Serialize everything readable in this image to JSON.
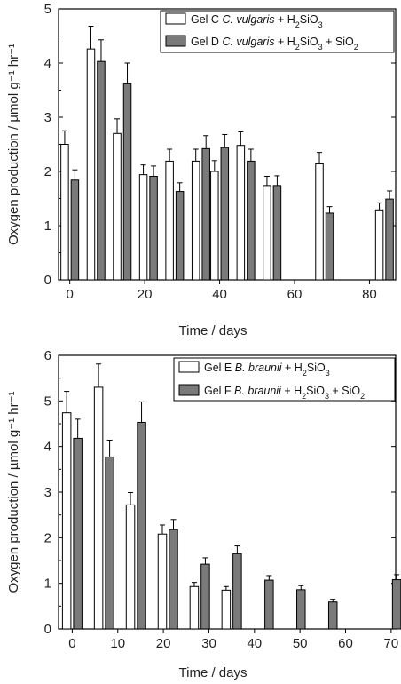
{
  "chart_data": [
    {
      "type": "bar",
      "ylabel": "Oxygen production / µmol g⁻¹ hr⁻¹",
      "xlabel": "Time / days",
      "xlim": [
        -3,
        87
      ],
      "ylim": [
        0,
        5
      ],
      "xticks": [
        0,
        20,
        40,
        60,
        80
      ],
      "yticks": [
        0,
        1,
        2,
        3,
        4,
        5
      ],
      "legend_position": "top-right",
      "series": [
        {
          "name": "Gel C C. vulgaris + H2SiO3",
          "legend": [
            {
              "text": "Gel C ",
              "style": "normal"
            },
            {
              "text": "C. vulgaris",
              "style": "italic"
            },
            {
              "text": " + H",
              "style": "normal"
            },
            {
              "text": "2",
              "style": "sub"
            },
            {
              "text": "SiO",
              "style": "normal"
            },
            {
              "text": "3",
              "style": "sub"
            }
          ],
          "color": "#ffffff",
          "points": [
            {
              "x": 0,
              "y": 2.5,
              "err": 0.25
            },
            {
              "x": 7,
              "y": 4.26,
              "err": 0.42
            },
            {
              "x": 14,
              "y": 2.7,
              "err": 0.27
            },
            {
              "x": 21,
              "y": 1.94,
              "err": 0.18
            },
            {
              "x": 28,
              "y": 2.19,
              "err": 0.22
            },
            {
              "x": 35,
              "y": 2.19,
              "err": 0.22
            },
            {
              "x": 40,
              "y": 2.0,
              "err": 0.2
            },
            {
              "x": 47,
              "y": 2.48,
              "err": 0.25
            },
            {
              "x": 54,
              "y": 1.74,
              "err": 0.17
            },
            {
              "x": 68,
              "y": 2.14,
              "err": 0.21
            },
            {
              "x": 84,
              "y": 1.29,
              "err": 0.13
            }
          ]
        },
        {
          "name": "Gel D C. vulgaris + H2SiO3 + SiO2",
          "legend": [
            {
              "text": "Gel D ",
              "style": "normal"
            },
            {
              "text": "C. vulgaris",
              "style": "italic"
            },
            {
              "text": " + H",
              "style": "normal"
            },
            {
              "text": "2",
              "style": "sub"
            },
            {
              "text": "SiO",
              "style": "normal"
            },
            {
              "text": "3",
              "style": "sub"
            },
            {
              "text": " + SiO",
              "style": "normal"
            },
            {
              "text": "2",
              "style": "sub"
            }
          ],
          "color": "#7a7a7a",
          "points": [
            {
              "x": 0,
              "y": 1.84,
              "err": 0.19
            },
            {
              "x": 7,
              "y": 4.03,
              "err": 0.4
            },
            {
              "x": 14,
              "y": 3.63,
              "err": 0.37
            },
            {
              "x": 21,
              "y": 1.91,
              "err": 0.19
            },
            {
              "x": 28,
              "y": 1.63,
              "err": 0.16
            },
            {
              "x": 35,
              "y": 2.42,
              "err": 0.24
            },
            {
              "x": 40,
              "y": 2.44,
              "err": 0.24
            },
            {
              "x": 47,
              "y": 2.19,
              "err": 0.22
            },
            {
              "x": 54,
              "y": 1.74,
              "err": 0.18
            },
            {
              "x": 68,
              "y": 1.23,
              "err": 0.12
            },
            {
              "x": 84,
              "y": 1.49,
              "err": 0.15
            }
          ]
        }
      ]
    },
    {
      "type": "bar",
      "ylabel": "Oxygen production / µmol g⁻¹ hr⁻¹",
      "xlabel": "Time / days",
      "xlim": [
        -3,
        71
      ],
      "ylim": [
        0,
        6
      ],
      "xticks": [
        0,
        10,
        20,
        30,
        40,
        50,
        60,
        70
      ],
      "xtick_labels": [
        "0",
        "10",
        "20",
        "30",
        "40",
        "50",
        "60",
        "70"
      ],
      "yticks": [
        0,
        1,
        2,
        3,
        4,
        5,
        6
      ],
      "legend_position": "top-right",
      "series": [
        {
          "name": "Gel E B. braunii + H2SiO3",
          "legend": [
            {
              "text": "Gel E ",
              "style": "normal"
            },
            {
              "text": "B. braunii",
              "style": "italic"
            },
            {
              "text": " + H",
              "style": "normal"
            },
            {
              "text": "2",
              "style": "sub"
            },
            {
              "text": "SiO",
              "style": "normal"
            },
            {
              "text": "3",
              "style": "sub"
            }
          ],
          "color": "#ffffff",
          "points": [
            {
              "x": 0,
              "y": 4.74,
              "err": 0.47
            },
            {
              "x": 7,
              "y": 5.3,
              "err": 0.51
            },
            {
              "x": 14,
              "y": 2.72,
              "err": 0.27
            },
            {
              "x": 21,
              "y": 2.08,
              "err": 0.2
            },
            {
              "x": 28,
              "y": 0.93,
              "err": 0.09
            },
            {
              "x": 35,
              "y": 0.85,
              "err": 0.08
            }
          ]
        },
        {
          "name": "Gel F B. braunii + H2SiO3 + SiO2",
          "legend": [
            {
              "text": "Gel F ",
              "style": "normal"
            },
            {
              "text": "B. braunii",
              "style": "italic"
            },
            {
              "text": " + H",
              "style": "normal"
            },
            {
              "text": "2",
              "style": "sub"
            },
            {
              "text": "SiO",
              "style": "normal"
            },
            {
              "text": "3",
              "style": "sub"
            },
            {
              "text": " + SiO",
              "style": "normal"
            },
            {
              "text": "2",
              "style": "sub"
            }
          ],
          "color": "#7a7a7a",
          "points": [
            {
              "x": 0,
              "y": 4.18,
              "err": 0.42
            },
            {
              "x": 7,
              "y": 3.77,
              "err": 0.37
            },
            {
              "x": 14,
              "y": 4.53,
              "err": 0.45
            },
            {
              "x": 21,
              "y": 2.18,
              "err": 0.22
            },
            {
              "x": 28,
              "y": 1.42,
              "err": 0.14
            },
            {
              "x": 35,
              "y": 1.65,
              "err": 0.17
            },
            {
              "x": 42,
              "y": 1.07,
              "err": 0.1
            },
            {
              "x": 49,
              "y": 0.86,
              "err": 0.09
            },
            {
              "x": 56,
              "y": 0.59,
              "err": 0.06
            },
            {
              "x": 70,
              "y": 1.08,
              "err": 0.11
            }
          ]
        }
      ]
    }
  ]
}
